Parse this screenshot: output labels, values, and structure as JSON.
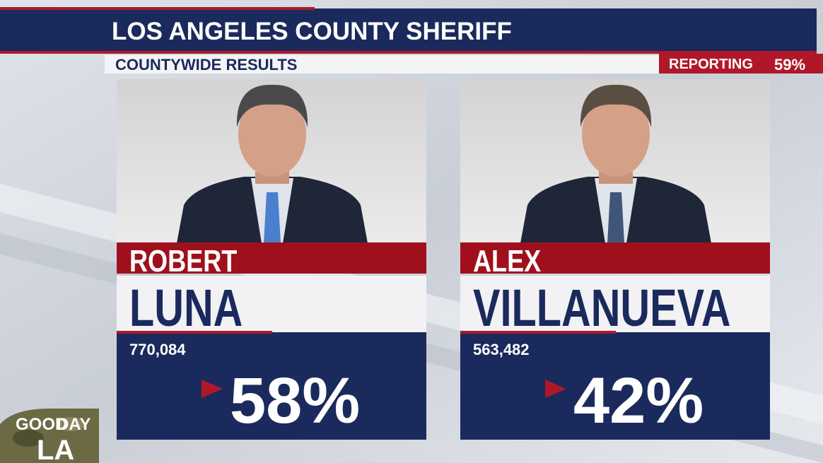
{
  "header": {
    "title": "LOS ANGELES COUNTY SHERIFF",
    "subtitle": "COUNTYWIDE RESULTS",
    "reporting_label": "REPORTING",
    "reporting_value": "59%"
  },
  "candidates": [
    {
      "first_name": "ROBERT",
      "last_name": "LUNA",
      "votes": "770,084",
      "percent": "58%"
    },
    {
      "first_name": "ALEX",
      "last_name": "VILLANUEVA",
      "votes": "563,482",
      "percent": "42%"
    }
  ],
  "logo": {
    "line1": "GOOD",
    "line2": "DAY",
    "line3": "LA"
  }
}
